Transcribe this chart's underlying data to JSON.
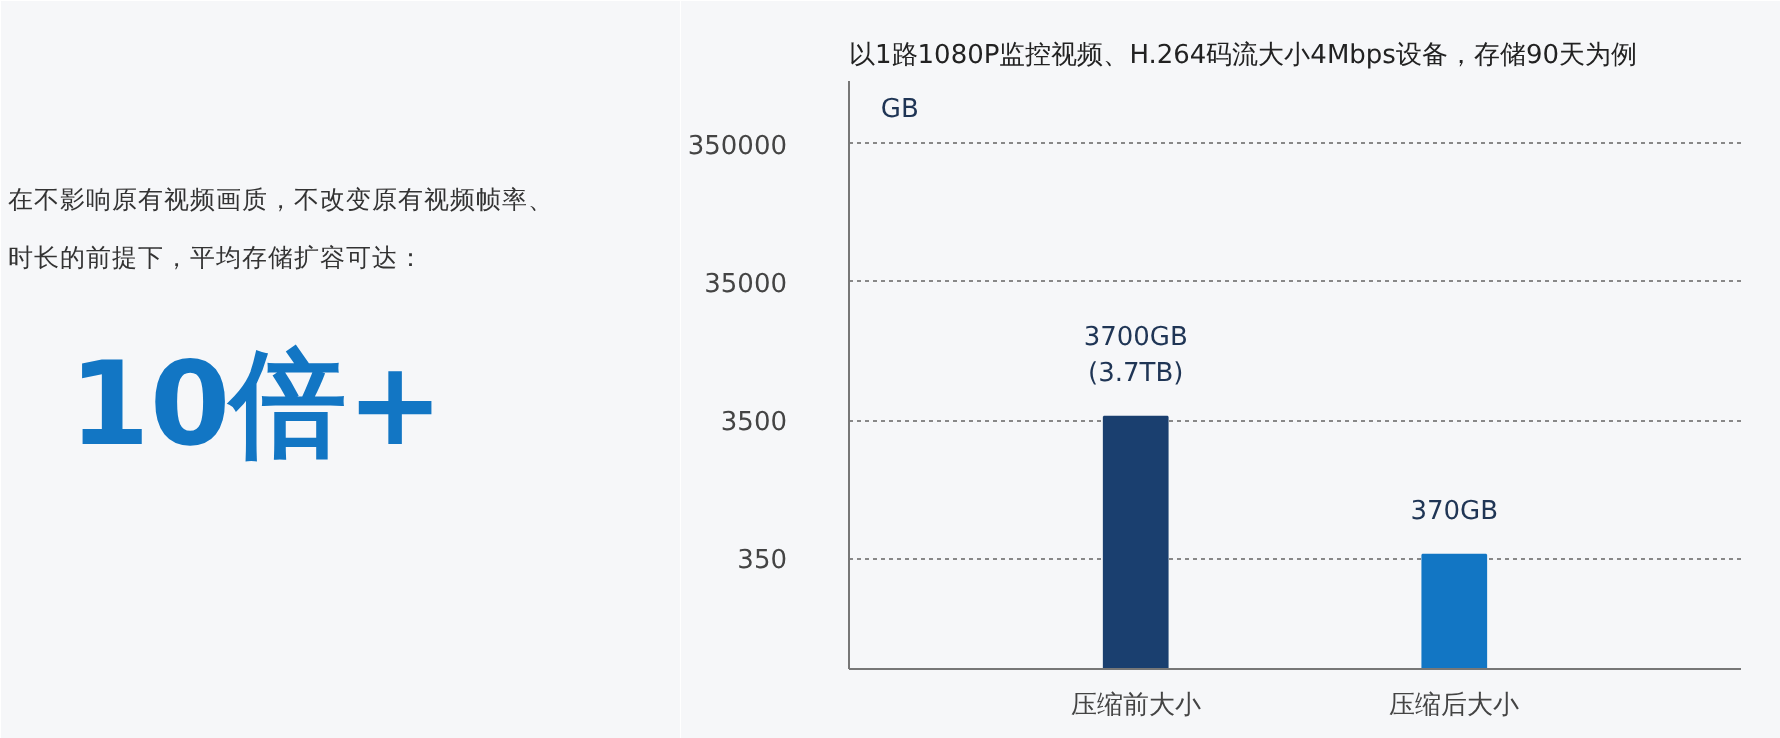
{
  "chart_data": {
    "type": "bar",
    "title": "以1路1080P监控视频、H.264码流大小4Mbps设备，存储90天为例",
    "ylabel": "GB",
    "categories": [
      "压缩前大小",
      "压缩后大小"
    ],
    "values": [
      3700,
      370
    ],
    "colors": [
      "#1a3f6f",
      "#1276c4"
    ],
    "value_labels": [
      "3700GB\n(3.7TB)",
      "370GB"
    ],
    "log": true,
    "ylim": [
      55,
      1000000
    ],
    "yticks": [
      350,
      3500,
      35000,
      350000
    ],
    "grid": "y",
    "annotations": [
      "在不影响原有视频画质，不改变原有视频帧率、",
      "时长的前提下，平均存储扩容可达：",
      "10倍+"
    ]
  }
}
